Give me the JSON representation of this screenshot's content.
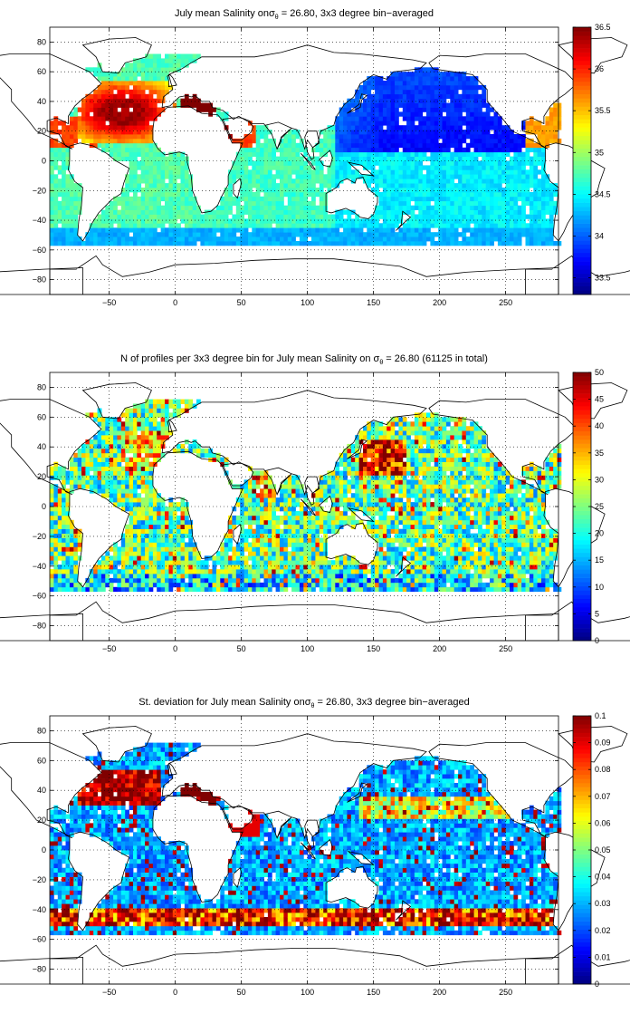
{
  "chart_data": [
    {
      "type": "heatmap",
      "title": {
        "prefix": "July mean Salinity on",
        "symbol": "σ",
        "subscript": "θ",
        "suffix": " = 26.80, 3x3 degree bin−averaged"
      },
      "field": "salinity",
      "xlim": [
        -95,
        290
      ],
      "ylim": [
        -90,
        90
      ],
      "xticks": [
        -50,
        0,
        50,
        100,
        150,
        200,
        250
      ],
      "yticks": [
        -80,
        -60,
        -40,
        -20,
        0,
        20,
        40,
        60,
        80
      ],
      "grid": true,
      "colorbar": {
        "min": 33.3,
        "max": 36.5,
        "ticks": [
          33.5,
          34,
          34.5,
          35,
          35.5,
          36,
          36.5
        ],
        "colormap": "jet"
      }
    },
    {
      "type": "heatmap",
      "title": {
        "prefix": "N of profiles per 3x3 degree bin for July mean Salinity on ",
        "symbol": "σ",
        "subscript": "θ",
        "suffix": " = 26.80 (61125 in total)"
      },
      "field": "count",
      "total_profiles": 61125,
      "xlim": [
        -95,
        290
      ],
      "ylim": [
        -90,
        90
      ],
      "xticks": [
        -50,
        0,
        50,
        100,
        150,
        200,
        250
      ],
      "yticks": [
        -80,
        -60,
        -40,
        -20,
        0,
        20,
        40,
        60,
        80
      ],
      "grid": true,
      "colorbar": {
        "min": 0,
        "max": 50,
        "ticks": [
          0,
          5,
          10,
          15,
          20,
          25,
          30,
          35,
          40,
          45,
          50
        ],
        "colormap": "jet"
      }
    },
    {
      "type": "heatmap",
      "title": {
        "prefix": "St. deviation for July mean Salinity on",
        "symbol": "σ",
        "subscript": "θ",
        "suffix": " = 26.80, 3x3 degree bin−averaged"
      },
      "field": "stdev",
      "xlim": [
        -95,
        290
      ],
      "ylim": [
        -90,
        90
      ],
      "xticks": [
        -50,
        0,
        50,
        100,
        150,
        200,
        250
      ],
      "yticks": [
        -80,
        -60,
        -40,
        -20,
        0,
        20,
        40,
        60,
        80
      ],
      "grid": true,
      "colorbar": {
        "min": 0,
        "max": 0.1,
        "ticks": [
          0,
          0.01,
          0.02,
          0.03,
          0.04,
          0.05,
          0.06,
          0.07,
          0.08,
          0.09,
          0.1
        ],
        "colormap": "jet"
      }
    }
  ],
  "bin_size_degrees": 3
}
